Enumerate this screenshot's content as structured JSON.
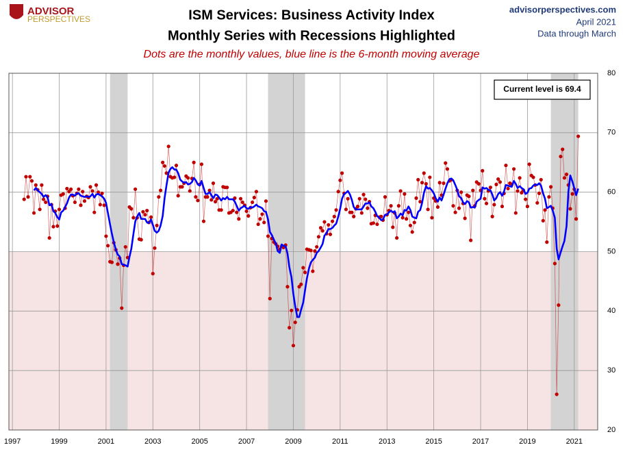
{
  "logo": {
    "line1": "ADVISOR",
    "line2": "PERSPECTIVES"
  },
  "source": {
    "site": "advisorperspectives.com",
    "date": "April 2021",
    "note": "Data through March"
  },
  "chart_data": {
    "type": "scatter-line",
    "title": "ISM Services: Business Activity Index",
    "title2": "Monthly Series with Recessions Highlighted",
    "subtitle": "Dots are the monthly values, blue line is the 6-month moving average",
    "annotation": "Current level is 69.4",
    "xlim": [
      1996.85,
      2022
    ],
    "ylim": [
      20,
      80
    ],
    "xticks": [
      1997,
      1999,
      2001,
      2003,
      2005,
      2007,
      2009,
      2011,
      2013,
      2015,
      2017,
      2019,
      2021
    ],
    "yticks": [
      20,
      30,
      40,
      50,
      60,
      70,
      80
    ],
    "grid": true,
    "shade_below": 50,
    "shade_color": "#f6e4e4",
    "recessions": [
      [
        2001.17,
        2001.92
      ],
      [
        2007.92,
        2009.5
      ],
      [
        2020.0,
        2021.17
      ]
    ],
    "recession_color": "#d3d3d3",
    "x": [
      1997.5,
      1997.58,
      1997.67,
      1997.75,
      1997.83,
      1997.92,
      1998,
      1998.08,
      1998.17,
      1998.25,
      1998.33,
      1998.42,
      1998.5,
      1998.58,
      1998.67,
      1998.75,
      1998.83,
      1998.92,
      1999,
      1999.08,
      1999.17,
      1999.25,
      1999.33,
      1999.42,
      1999.5,
      1999.58,
      1999.67,
      1999.75,
      1999.83,
      1999.92,
      2000,
      2000.08,
      2000.17,
      2000.25,
      2000.33,
      2000.42,
      2000.5,
      2000.58,
      2000.67,
      2000.75,
      2000.83,
      2000.92,
      2001,
      2001.08,
      2001.17,
      2001.25,
      2001.33,
      2001.42,
      2001.5,
      2001.58,
      2001.67,
      2001.75,
      2001.83,
      2001.92,
      2002,
      2002.08,
      2002.17,
      2002.25,
      2002.33,
      2002.42,
      2002.5,
      2002.58,
      2002.67,
      2002.75,
      2002.83,
      2002.92,
      2003,
      2003.08,
      2003.17,
      2003.25,
      2003.33,
      2003.42,
      2003.5,
      2003.58,
      2003.67,
      2003.75,
      2003.83,
      2003.92,
      2004,
      2004.08,
      2004.17,
      2004.25,
      2004.33,
      2004.42,
      2004.5,
      2004.58,
      2004.67,
      2004.75,
      2004.83,
      2004.92,
      2005,
      2005.08,
      2005.17,
      2005.25,
      2005.33,
      2005.42,
      2005.5,
      2005.58,
      2005.67,
      2005.75,
      2005.83,
      2005.92,
      2006,
      2006.08,
      2006.17,
      2006.25,
      2006.33,
      2006.42,
      2006.5,
      2006.58,
      2006.67,
      2006.75,
      2006.83,
      2006.92,
      2007,
      2007.08,
      2007.17,
      2007.25,
      2007.33,
      2007.42,
      2007.5,
      2007.58,
      2007.67,
      2007.75,
      2007.83,
      2007.92,
      2008,
      2008.08,
      2008.17,
      2008.25,
      2008.33,
      2008.42,
      2008.5,
      2008.58,
      2008.67,
      2008.75,
      2008.83,
      2008.92,
      2009,
      2009.08,
      2009.17,
      2009.25,
      2009.33,
      2009.42,
      2009.5,
      2009.58,
      2009.67,
      2009.75,
      2009.83,
      2009.92,
      2010,
      2010.08,
      2010.17,
      2010.25,
      2010.33,
      2010.42,
      2010.5,
      2010.58,
      2010.67,
      2010.75,
      2010.83,
      2010.92,
      2011,
      2011.08,
      2011.17,
      2011.25,
      2011.33,
      2011.42,
      2011.5,
      2011.58,
      2011.67,
      2011.75,
      2011.83,
      2011.92,
      2012,
      2012.08,
      2012.17,
      2012.25,
      2012.33,
      2012.42,
      2012.5,
      2012.58,
      2012.67,
      2012.75,
      2012.83,
      2012.92,
      2013,
      2013.08,
      2013.17,
      2013.25,
      2013.33,
      2013.42,
      2013.5,
      2013.58,
      2013.67,
      2013.75,
      2013.83,
      2013.92,
      2014,
      2014.08,
      2014.17,
      2014.25,
      2014.33,
      2014.42,
      2014.5,
      2014.58,
      2014.67,
      2014.75,
      2014.83,
      2014.92,
      2015,
      2015.08,
      2015.17,
      2015.25,
      2015.33,
      2015.42,
      2015.5,
      2015.58,
      2015.67,
      2015.75,
      2015.83,
      2015.92,
      2016,
      2016.08,
      2016.17,
      2016.25,
      2016.33,
      2016.42,
      2016.5,
      2016.58,
      2016.67,
      2016.75,
      2016.83,
      2016.92,
      2017,
      2017.08,
      2017.17,
      2017.25,
      2017.33,
      2017.42,
      2017.5,
      2017.58,
      2017.67,
      2017.75,
      2017.83,
      2017.92,
      2018,
      2018.08,
      2018.17,
      2018.25,
      2018.33,
      2018.42,
      2018.5,
      2018.58,
      2018.67,
      2018.75,
      2018.83,
      2018.92,
      2019,
      2019.08,
      2019.17,
      2019.25,
      2019.33,
      2019.42,
      2019.5,
      2019.58,
      2019.67,
      2019.75,
      2019.83,
      2019.92,
      2020,
      2020.08,
      2020.17,
      2020.25,
      2020.33,
      2020.42,
      2020.5,
      2020.58,
      2020.67,
      2020.75,
      2020.83,
      2020.92,
      2021,
      2021.08,
      2021.17
    ],
    "series": [
      {
        "style": "dots",
        "color": "#c00000",
        "values": [
          58.8,
          62.6,
          59.2,
          62.6,
          61.9,
          56.5,
          61.2,
          60.4,
          57.1,
          61.2,
          58.8,
          58.3,
          59.3,
          52.3,
          57.9,
          54.2,
          56.8,
          54.3,
          57.1,
          59.5,
          59.7,
          57.3,
          60.6,
          60.1,
          60.5,
          59.4,
          58.3,
          59.8,
          60.5,
          57.8,
          60.1,
          58.5,
          59.3,
          59.1,
          60.9,
          60.2,
          56.6,
          61.2,
          60.0,
          57.9,
          59.8,
          57.8,
          52.6,
          51.0,
          48.3,
          48.2,
          51.5,
          50.3,
          47.9,
          48.9,
          40.5,
          47.7,
          50.8,
          49.0,
          57.5,
          57.2,
          55.7,
          60.5,
          55.7,
          52.1,
          52.0,
          56.7,
          56.2,
          56.9,
          54.9,
          55.8,
          46.3,
          50.6,
          54.4,
          59.2,
          60.3,
          65.0,
          64.4,
          63.2,
          67.7,
          62.6,
          62.4,
          62.5,
          64.5,
          59.4,
          60.9,
          60.9,
          61.5,
          62.7,
          62.4,
          60.2,
          62.3,
          65.0,
          59.2,
          58.6,
          61.3,
          64.7,
          55.1,
          59.2,
          59.2,
          60.3,
          58.7,
          61.5,
          58.4,
          58.9,
          57.0,
          57.0,
          60.9,
          60.8,
          60.8,
          56.5,
          56.6,
          56.9,
          59.0,
          56.6,
          55.5,
          58.9,
          58.3,
          57.8,
          56.8,
          56.0,
          57.4,
          58.3,
          59.1,
          60.1,
          54.6,
          55.5,
          56.3,
          54.9,
          58.5,
          52.6,
          42.1,
          52.2,
          51.6,
          51.3,
          50.9,
          50.4,
          50.9,
          50.7,
          51.1,
          44.1,
          37.2,
          40.1,
          34.2,
          38.1,
          40.2,
          44.1,
          44.5,
          47.3,
          46.5,
          50.4,
          50.3,
          50.2,
          46.7,
          50.1,
          50.8,
          52.5,
          54.0,
          53.5,
          55.0,
          53.0,
          54.5,
          52.9,
          55.1,
          55.9,
          57.0,
          60.1,
          62.0,
          63.2,
          59.8,
          57.1,
          58.9,
          56.6,
          56.6,
          55.9,
          57.2,
          57.6,
          58.9,
          56.5,
          59.6,
          58.8,
          57.3,
          58.4,
          54.7,
          54.8,
          56.1,
          54.6,
          55.8,
          55.9,
          55.3,
          59.2,
          56.2,
          56.9,
          57.7,
          54.1,
          56.5,
          52.3,
          57.7,
          60.2,
          55.7,
          59.7,
          55.5,
          56.6,
          54.4,
          53.3,
          54.9,
          59.0,
          62.1,
          58.4,
          61.6,
          63.2,
          61.4,
          57.1,
          62.5,
          55.7,
          59.0,
          58.5,
          57.5,
          61.6,
          59.5,
          61.5,
          64.9,
          63.9,
          61.9,
          62.1,
          57.7,
          56.6,
          60.3,
          57.3,
          60.0,
          58.1,
          55.6,
          59.5,
          59.3,
          51.9,
          60.3,
          57.7,
          61.7,
          61.4,
          60.3,
          63.6,
          58.9,
          58.1,
          60.2,
          60.8,
          55.9,
          57.9,
          61.3,
          62.2,
          61.7,
          57.6,
          59.8,
          64.5,
          60.6,
          61.5,
          61.3,
          63.9,
          56.5,
          60.2,
          62.4,
          59.9,
          60.3,
          58.8,
          57.6,
          64.7,
          62.8,
          62.5,
          61.2,
          58.2,
          59.8,
          62.1,
          55.2,
          57.0,
          51.6,
          59.2,
          60.9,
          57.3,
          48.0,
          26.0,
          41.0,
          66.0,
          67.2,
          62.4,
          63.0,
          61.2,
          57.2,
          59.7,
          60.5,
          55.5,
          69.4
        ]
      },
      {
        "style": "line",
        "color": "#0000ff",
        "values": [
          null,
          null,
          null,
          null,
          null,
          60.3,
          60.7,
          60.3,
          60.0,
          59.7,
          59.2,
          59.5,
          59.2,
          57.8,
          58.0,
          56.8,
          56.5,
          55.8,
          55.4,
          56.6,
          56.9,
          57.5,
          58.1,
          59.1,
          59.6,
          59.6,
          59.4,
          59.8,
          59.8,
          59.4,
          59.3,
          59.2,
          59.3,
          59.2,
          59.3,
          59.7,
          59.1,
          59.6,
          59.7,
          59.5,
          59.3,
          58.9,
          58.2,
          56.5,
          54.6,
          53.0,
          51.6,
          50.3,
          49.5,
          49.2,
          47.9,
          47.8,
          47.7,
          47.5,
          49.1,
          50.5,
          53.0,
          55.1,
          55.9,
          56.5,
          55.5,
          55.5,
          55.5,
          54.9,
          54.8,
          55.4,
          54.5,
          53.5,
          53.2,
          53.5,
          54.4,
          56.0,
          59.0,
          61.1,
          63.3,
          63.9,
          64.2,
          63.8,
          63.8,
          63.2,
          62.1,
          61.8,
          61.6,
          61.7,
          61.3,
          61.4,
          61.7,
          62.4,
          62.0,
          61.3,
          61.1,
          61.9,
          60.7,
          59.7,
          59.7,
          60.0,
          59.5,
          59.0,
          59.6,
          59.5,
          59.1,
          58.6,
          59.0,
          58.8,
          59.2,
          58.8,
          58.8,
          58.8,
          58.4,
          57.7,
          56.9,
          57.3,
          57.5,
          57.7,
          57.3,
          57.2,
          57.5,
          57.4,
          57.6,
          57.9,
          57.6,
          57.5,
          57.3,
          56.8,
          56.7,
          55.4,
          53.3,
          52.8,
          52.0,
          51.4,
          50.1,
          49.8,
          51.2,
          51.0,
          50.9,
          49.7,
          47.4,
          45.7,
          42.9,
          40.8,
          39.0,
          39.0,
          40.2,
          41.4,
          43.5,
          45.5,
          47.2,
          48.2,
          48.6,
          49.0,
          49.8,
          50.1,
          50.7,
          51.3,
          52.7,
          53.1,
          53.8,
          53.8,
          54.0,
          54.4,
          54.7,
          55.9,
          57.2,
          58.9,
          59.7,
          59.9,
          60.2,
          59.6,
          58.7,
          57.5,
          57.1,
          57.1,
          57.1,
          57.1,
          57.6,
          58.1,
          58.1,
          58.3,
          57.6,
          57.3,
          56.7,
          56.0,
          55.7,
          55.3,
          55.4,
          56.2,
          56.2,
          56.6,
          56.9,
          56.6,
          56.8,
          55.6,
          55.9,
          56.4,
          56.1,
          57.0,
          56.9,
          57.6,
          57.0,
          55.9,
          55.7,
          55.6,
          56.7,
          57.0,
          58.2,
          59.9,
          61.0,
          60.6,
          60.7,
          60.3,
          59.8,
          59.0,
          58.4,
          59.1,
          58.6,
          59.6,
          60.6,
          61.5,
          62.2,
          62.3,
          62.0,
          61.2,
          60.4,
          59.3,
          59.0,
          58.3,
          58.0,
          58.5,
          58.3,
          57.4,
          57.5,
          57.4,
          58.4,
          58.7,
          58.9,
          60.8,
          60.6,
          60.7,
          60.4,
          60.3,
          59.6,
          58.6,
          59.0,
          59.7,
          60.0,
          59.4,
          60.1,
          61.2,
          61.1,
          61.0,
          60.9,
          61.9,
          61.4,
          60.7,
          61.0,
          60.7,
          60.5,
          59.7,
          59.9,
          60.6,
          60.7,
          61.1,
          61.3,
          61.2,
          61.5,
          61.1,
          59.8,
          58.9,
          57.3,
          57.5,
          57.7,
          56.9,
          55.7,
          50.5,
          48.7,
          49.9,
          50.9,
          51.8,
          54.3,
          60.1,
          62.8,
          61.8,
          60.7,
          59.5,
          60.6
        ]
      }
    ]
  }
}
